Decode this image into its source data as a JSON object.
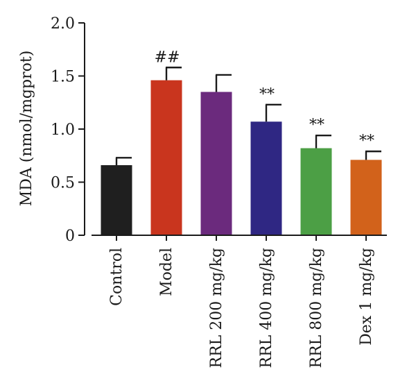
{
  "chart_data": {
    "type": "bar",
    "ylabel": "MDA (nmol/mgprot)",
    "ylim": [
      0,
      2.0
    ],
    "yticks": [
      "0",
      "0.5",
      "1.0",
      "1.5",
      "2.0"
    ],
    "ytick_values": [
      0,
      0.5,
      1.0,
      1.5,
      2.0
    ],
    "categories": [
      "Control",
      "Model",
      "RRL 200 mg/kg",
      "RRL 400 mg/kg",
      "RRL 800 mg/kg",
      "Dex 1 mg/kg"
    ],
    "values": [
      0.66,
      1.46,
      1.35,
      1.07,
      0.82,
      0.71
    ],
    "errors": [
      0.07,
      0.12,
      0.16,
      0.16,
      0.12,
      0.08
    ],
    "annotations": [
      "",
      "##",
      "",
      "**",
      "**",
      "**"
    ],
    "colors": [
      "#1f1f1f",
      "#c9351e",
      "#6b2a7d",
      "#2f2783",
      "#4c9f45",
      "#d2621b"
    ],
    "grid": false,
    "legend": "none"
  }
}
